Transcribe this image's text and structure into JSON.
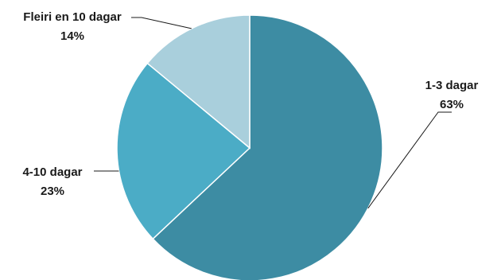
{
  "chart_data": {
    "type": "pie",
    "title": "",
    "slices": [
      {
        "label": "1-3 dagar",
        "value": 63,
        "display": "63%",
        "color": "#3d8ca3"
      },
      {
        "label": "4-10 dagar",
        "value": 23,
        "display": "23%",
        "color": "#4bacc6"
      },
      {
        "label": "Fleiri en 10 dagar",
        "value": 14,
        "display": "14%",
        "color": "#a9cfdc"
      }
    ],
    "start": "12 o'clock",
    "direction": "clockwise",
    "legend": "none",
    "data_labels": "outside with leader lines"
  }
}
